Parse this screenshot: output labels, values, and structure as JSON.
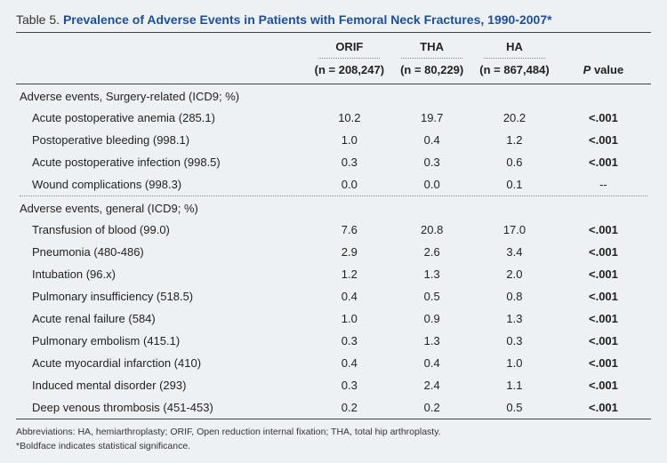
{
  "table_number": "Table 5.",
  "title": "Prevalence of Adverse Events in Patients with Femoral Neck Fractures, 1990-2007*",
  "columns": {
    "c1": {
      "label": "ORIF",
      "n": "(n = 208,247)"
    },
    "c2": {
      "label": "THA",
      "n": "(n = 80,229)"
    },
    "c3": {
      "label": "HA",
      "n": "(n = 867,484)"
    },
    "p": {
      "label": "P value",
      "italic_p": "P"
    }
  },
  "sections": [
    {
      "heading": "Adverse events, Surgery-related (ICD9; %)",
      "rows": [
        {
          "label": "Acute postoperative anemia (285.1)",
          "v1": "10.2",
          "v2": "19.7",
          "v3": "20.2",
          "p": "<.001",
          "bold": true
        },
        {
          "label": "Postoperative bleeding (998.1)",
          "v1": "1.0",
          "v2": "0.4",
          "v3": "1.2",
          "p": "<.001",
          "bold": true
        },
        {
          "label": "Acute postoperative infection (998.5)",
          "v1": "0.3",
          "v2": "0.3",
          "v3": "0.6",
          "p": "<.001",
          "bold": true
        },
        {
          "label": "Wound complications (998.3)",
          "v1": "0.0",
          "v2": "0.0",
          "v3": "0.1",
          "p": "--",
          "bold": false
        }
      ]
    },
    {
      "heading": "Adverse events, general (ICD9; %)",
      "rows": [
        {
          "label": "Transfusion of blood (99.0)",
          "v1": "7.6",
          "v2": "20.8",
          "v3": "17.0",
          "p": "<.001",
          "bold": true
        },
        {
          "label": "Pneumonia (480-486)",
          "v1": "2.9",
          "v2": "2.6",
          "v3": "3.4",
          "p": "<.001",
          "bold": true
        },
        {
          "label": "Intubation (96.x)",
          "v1": "1.2",
          "v2": "1.3",
          "v3": "2.0",
          "p": "<.001",
          "bold": true
        },
        {
          "label": "Pulmonary insufficiency (518.5)",
          "v1": "0.4",
          "v2": "0.5",
          "v3": "0.8",
          "p": "<.001",
          "bold": true
        },
        {
          "label": "Acute renal failure (584)",
          "v1": "1.0",
          "v2": "0.9",
          "v3": "1.3",
          "p": "<.001",
          "bold": true
        },
        {
          "label": "Pulmonary embolism (415.1)",
          "v1": "0.3",
          "v2": "1.3",
          "v3": "0.3",
          "p": "<.001",
          "bold": true
        },
        {
          "label": "Acute myocardial infarction (410)",
          "v1": "0.4",
          "v2": "0.4",
          "v3": "1.0",
          "p": "<.001",
          "bold": true
        },
        {
          "label": "Induced mental disorder (293)",
          "v1": "0.3",
          "v2": "2.4",
          "v3": "1.1",
          "p": "<.001",
          "bold": true
        },
        {
          "label": "Deep venous thrombosis (451-453)",
          "v1": "0.2",
          "v2": "0.2",
          "v3": "0.5",
          "p": "<.001",
          "bold": true
        }
      ]
    }
  ],
  "footnotes": {
    "abbrev": "Abbreviations: HA, hemiarthroplasty; ORIF, Open reduction internal fixation; THA, total hip arthroplasty.",
    "note": "*Boldface indicates statistical significance."
  },
  "style": {
    "bg": "#eef1f4",
    "title_color": "#1b4f9c",
    "rule_color": "#444",
    "dot_color": "#888",
    "fontsize_title": 14,
    "fontsize_body": 13,
    "fontsize_foot": 10.5
  }
}
